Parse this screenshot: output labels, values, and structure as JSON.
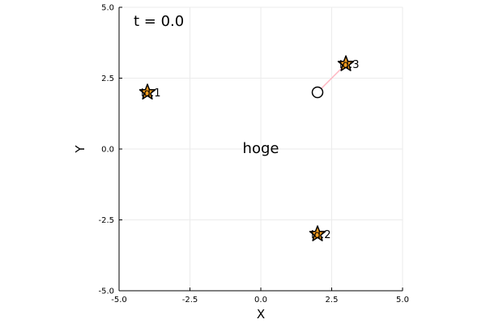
{
  "chart_data": {
    "type": "scatter",
    "title": "",
    "xlabel": "X",
    "ylabel": "Y",
    "xlim": [
      -5,
      5
    ],
    "ylim": [
      -5,
      5
    ],
    "grid": true,
    "legend": "none",
    "x_ticks": [
      -5.0,
      -2.5,
      0.0,
      2.5,
      5.0
    ],
    "y_ticks": [
      -5.0,
      -2.5,
      0.0,
      2.5,
      5.0
    ],
    "x_tick_labels": [
      "-5.0",
      "-2.5",
      "0.0",
      "2.5",
      "5.0"
    ],
    "y_tick_labels": [
      "-5.0",
      "-2.5",
      "0.0",
      "2.5",
      "5.0"
    ],
    "stars": [
      {
        "x": -4,
        "y": 2,
        "label": "id:1"
      },
      {
        "x": 2,
        "y": -3,
        "label": "id:2"
      },
      {
        "x": 3,
        "y": 3,
        "label": "id:3"
      }
    ],
    "agent": {
      "x": 2,
      "y": 2,
      "marker": "circle"
    },
    "link": {
      "from": [
        2,
        2
      ],
      "to": [
        3,
        3
      ],
      "color": "#ffb6c1"
    },
    "annotations": [
      {
        "text": "t = 0.0",
        "position": "top-left"
      },
      {
        "text": "hoge",
        "x": 0,
        "y": 0
      }
    ],
    "colors": {
      "star_fill": "#f39c1f",
      "marker_stroke": "#000000",
      "grid": "#ebebeb",
      "axis": "#000000"
    }
  }
}
